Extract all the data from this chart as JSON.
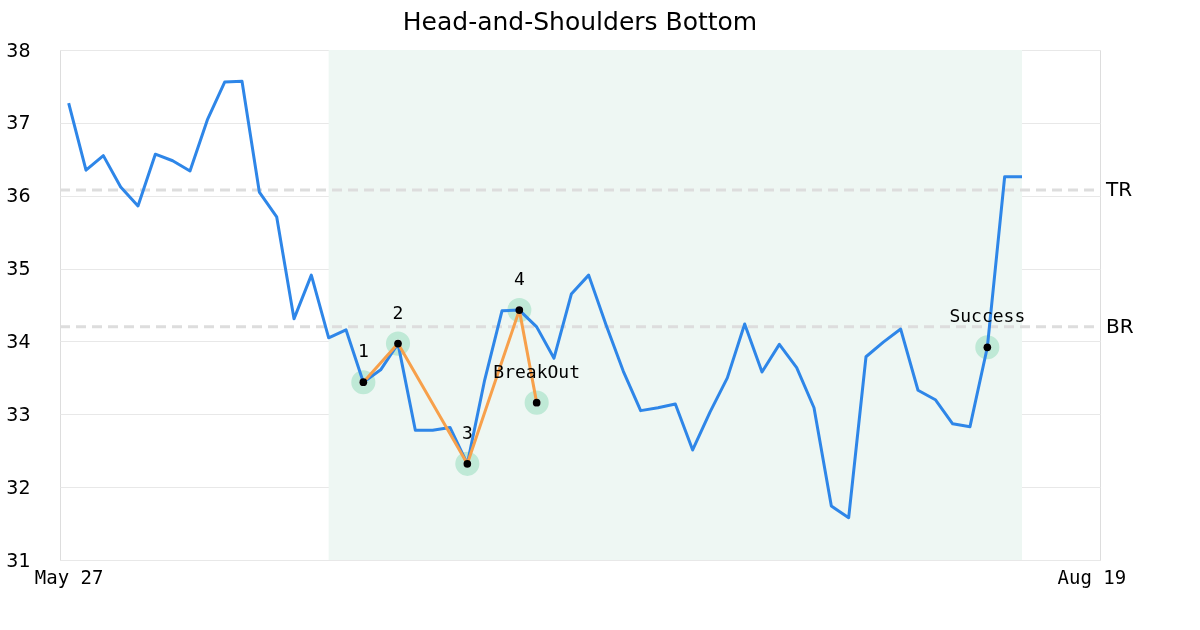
{
  "chart_data": {
    "type": "line",
    "title": "Head-and-Shoulders Bottom",
    "categories": [
      "May 27",
      null,
      null,
      null,
      null,
      null,
      null,
      null,
      null,
      null,
      null,
      null,
      null,
      null,
      null,
      null,
      null,
      null,
      null,
      null,
      null,
      null,
      null,
      null,
      null,
      null,
      null,
      null,
      null,
      null,
      null,
      null,
      null,
      null,
      null,
      null,
      null,
      null,
      null,
      null,
      null,
      null,
      null,
      null,
      null,
      null,
      null,
      null,
      null,
      null,
      null,
      null,
      null,
      null,
      null,
      null,
      null,
      null,
      null,
      "Aug 19"
    ],
    "series": [
      {
        "color": "#2e86e8",
        "values": [
          37.27,
          36.35,
          36.55,
          36.12,
          35.86,
          36.57,
          36.48,
          36.34,
          37.04,
          37.56,
          37.57,
          36.05,
          35.71,
          34.31,
          34.91,
          34.05,
          34.16,
          33.44,
          33.61,
          33.97,
          32.78,
          32.78,
          32.82,
          32.32,
          33.47,
          34.42,
          34.43,
          34.2,
          33.77,
          34.65,
          34.91,
          34.23,
          33.59,
          33.05,
          33.09,
          33.14,
          32.51,
          33.03,
          33.5,
          34.24,
          33.58,
          33.96,
          33.64,
          33.09,
          31.74,
          31.58,
          33.79,
          33.99,
          34.17,
          33.33,
          33.2,
          32.87,
          32.83,
          33.92,
          36.26,
          36.26,
          null,
          null,
          null,
          null
        ]
      },
      {
        "color": "#f7a04b",
        "type": "line",
        "marker": "circle",
        "values": [
          null,
          null,
          null,
          null,
          null,
          null,
          null,
          null,
          null,
          null,
          null,
          null,
          null,
          null,
          null,
          null,
          null,
          33.44,
          null,
          33.97,
          null,
          null,
          null,
          32.32,
          null,
          null,
          34.43,
          33.16,
          null,
          null,
          null,
          null,
          null,
          null,
          null,
          null,
          null,
          null,
          null,
          null,
          null,
          null,
          null,
          null,
          null,
          null,
          null,
          null,
          null,
          null,
          null,
          null,
          null,
          null,
          null,
          null,
          null,
          null,
          null,
          null
        ]
      },
      {
        "color": "#000000",
        "type": "scatter",
        "marker": "circle",
        "values": [
          null,
          null,
          null,
          null,
          null,
          null,
          null,
          null,
          null,
          null,
          null,
          null,
          null,
          null,
          null,
          null,
          null,
          null,
          null,
          null,
          null,
          null,
          null,
          null,
          null,
          null,
          null,
          null,
          null,
          null,
          null,
          null,
          null,
          null,
          null,
          null,
          null,
          null,
          null,
          null,
          null,
          null,
          null,
          null,
          null,
          null,
          null,
          null,
          null,
          null,
          null,
          null,
          null,
          33.92,
          null,
          null,
          null,
          null,
          null,
          null
        ]
      }
    ],
    "annotations": [
      {
        "text": "1",
        "y": 33.44
      },
      {
        "text": "2",
        "y": 33.97
      },
      {
        "text": "3",
        "y": 32.32
      },
      {
        "text": "4",
        "y": 34.43
      },
      {
        "text": "BreakOut",
        "y": 33.16
      },
      {
        "text": "Success",
        "y": 33.92
      }
    ],
    "ref_lines": [
      {
        "axis": "y",
        "value": 36.08,
        "label": "TR",
        "color": "#dddddd",
        "line_style": "dashed"
      },
      {
        "axis": "y",
        "value": 34.2,
        "label": "BR",
        "color": "#dddddd",
        "line_style": "dashed"
      }
    ],
    "ylim": [
      31,
      38
    ],
    "yticks": [
      31,
      32,
      33,
      34,
      35,
      36,
      37,
      38
    ],
    "grid": "y",
    "line_style": "solid"
  }
}
